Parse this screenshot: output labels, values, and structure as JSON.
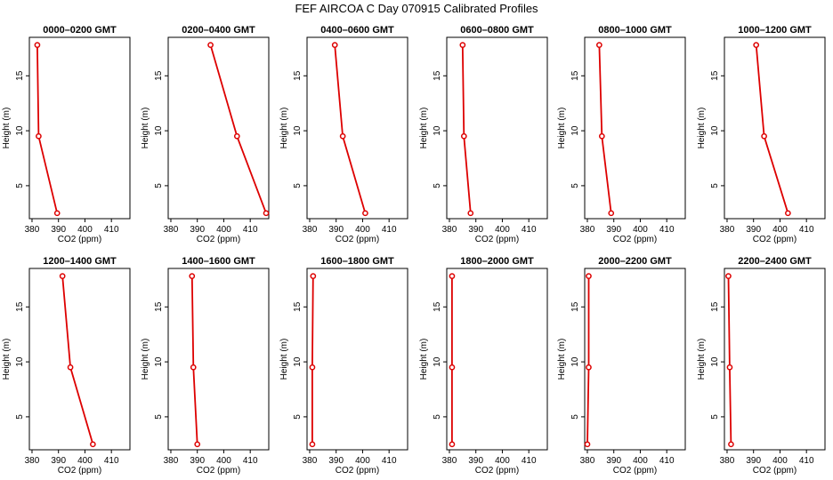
{
  "figure": {
    "title": "FEF AIRCOA C  Day 070915  Calibrated Profiles"
  },
  "chart_data": [
    {
      "type": "line",
      "title": "0000–0200 GMT",
      "xlabel": "CO2 (ppm)",
      "ylabel": "Height (m)",
      "x": [
        389.5,
        382.5,
        382.0
      ],
      "y": [
        2.5,
        9.5,
        17.8
      ],
      "xlim": [
        379,
        417
      ],
      "ylim": [
        2,
        18.5
      ],
      "xticks": [
        380,
        390,
        400,
        410
      ],
      "yticks": [
        5,
        10,
        15
      ]
    },
    {
      "type": "line",
      "title": "0200–0400 GMT",
      "xlabel": "CO2 (ppm)",
      "ylabel": "Height (m)",
      "x": [
        416.0,
        405.0,
        395.0
      ],
      "y": [
        2.5,
        9.5,
        17.8
      ],
      "xlim": [
        379,
        417
      ],
      "ylim": [
        2,
        18.5
      ],
      "xticks": [
        380,
        390,
        400,
        410
      ],
      "yticks": [
        5,
        10,
        15
      ]
    },
    {
      "type": "line",
      "title": "0400–0600 GMT",
      "xlabel": "CO2 (ppm)",
      "ylabel": "Height (m)",
      "x": [
        401.0,
        392.5,
        389.5
      ],
      "y": [
        2.5,
        9.5,
        17.8
      ],
      "xlim": [
        379,
        417
      ],
      "ylim": [
        2,
        18.5
      ],
      "xticks": [
        380,
        390,
        400,
        410
      ],
      "yticks": [
        5,
        10,
        15
      ]
    },
    {
      "type": "line",
      "title": "0600–0800 GMT",
      "xlabel": "CO2 (ppm)",
      "ylabel": "Height (m)",
      "x": [
        388.0,
        385.5,
        385.0
      ],
      "y": [
        2.5,
        9.5,
        17.8
      ],
      "xlim": [
        379,
        417
      ],
      "ylim": [
        2,
        18.5
      ],
      "xticks": [
        380,
        390,
        400,
        410
      ],
      "yticks": [
        5,
        10,
        15
      ]
    },
    {
      "type": "line",
      "title": "0800–1000 GMT",
      "xlabel": "CO2 (ppm)",
      "ylabel": "Height (m)",
      "x": [
        389.0,
        385.5,
        384.5
      ],
      "y": [
        2.5,
        9.5,
        17.8
      ],
      "xlim": [
        379,
        417
      ],
      "ylim": [
        2,
        18.5
      ],
      "xticks": [
        380,
        390,
        400,
        410
      ],
      "yticks": [
        5,
        10,
        15
      ]
    },
    {
      "type": "line",
      "title": "1000–1200 GMT",
      "xlabel": "CO2 (ppm)",
      "ylabel": "Height (m)",
      "x": [
        403.0,
        394.0,
        391.0
      ],
      "y": [
        2.5,
        9.5,
        17.8
      ],
      "xlim": [
        379,
        417
      ],
      "ylim": [
        2,
        18.5
      ],
      "xticks": [
        380,
        390,
        400,
        410
      ],
      "yticks": [
        5,
        10,
        15
      ]
    },
    {
      "type": "line",
      "title": "1200–1400 GMT",
      "xlabel": "CO2 (ppm)",
      "ylabel": "Height (m)",
      "x": [
        403.0,
        394.5,
        391.5
      ],
      "y": [
        2.5,
        9.5,
        17.8
      ],
      "xlim": [
        379,
        417
      ],
      "ylim": [
        2,
        18.5
      ],
      "xticks": [
        380,
        390,
        400,
        410
      ],
      "yticks": [
        5,
        10,
        15
      ]
    },
    {
      "type": "line",
      "title": "1400–1600 GMT",
      "xlabel": "CO2 (ppm)",
      "ylabel": "Height (m)",
      "x": [
        390.0,
        388.5,
        388.0
      ],
      "y": [
        2.5,
        9.5,
        17.8
      ],
      "xlim": [
        379,
        417
      ],
      "ylim": [
        2,
        18.5
      ],
      "xticks": [
        380,
        390,
        400,
        410
      ],
      "yticks": [
        5,
        10,
        15
      ]
    },
    {
      "type": "line",
      "title": "1600–1800 GMT",
      "xlabel": "CO2 (ppm)",
      "ylabel": "Height (m)",
      "x": [
        381.0,
        381.0,
        381.3
      ],
      "y": [
        2.5,
        9.5,
        17.8
      ],
      "xlim": [
        379,
        417
      ],
      "ylim": [
        2,
        18.5
      ],
      "xticks": [
        380,
        390,
        400,
        410
      ],
      "yticks": [
        5,
        10,
        15
      ]
    },
    {
      "type": "line",
      "title": "1800–2000 GMT",
      "xlabel": "CO2 (ppm)",
      "ylabel": "Height (m)",
      "x": [
        381.0,
        381.0,
        381.0
      ],
      "y": [
        2.5,
        9.5,
        17.8
      ],
      "xlim": [
        379,
        417
      ],
      "ylim": [
        2,
        18.5
      ],
      "xticks": [
        380,
        390,
        400,
        410
      ],
      "yticks": [
        5,
        10,
        15
      ]
    },
    {
      "type": "line",
      "title": "2000–2200 GMT",
      "xlabel": "CO2 (ppm)",
      "ylabel": "Height (m)",
      "x": [
        380.0,
        380.5,
        380.5
      ],
      "y": [
        2.5,
        9.5,
        17.8
      ],
      "xlim": [
        379,
        417
      ],
      "ylim": [
        2,
        18.5
      ],
      "xticks": [
        380,
        390,
        400,
        410
      ],
      "yticks": [
        5,
        10,
        15
      ]
    },
    {
      "type": "line",
      "title": "2200–2400 GMT",
      "xlabel": "CO2 (ppm)",
      "ylabel": "Height (m)",
      "x": [
        381.5,
        381.0,
        380.5
      ],
      "y": [
        2.5,
        9.5,
        17.8
      ],
      "xlim": [
        379,
        417
      ],
      "ylim": [
        2,
        18.5
      ],
      "xticks": [
        380,
        390,
        400,
        410
      ],
      "yticks": [
        5,
        10,
        15
      ]
    }
  ]
}
